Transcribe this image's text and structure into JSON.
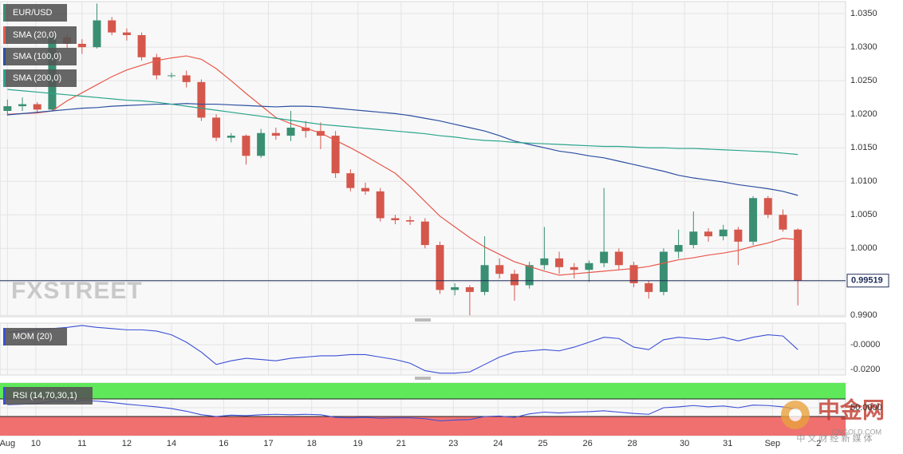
{
  "chart_data": [
    {
      "type": "candlestick",
      "title": "EUR/USD",
      "watermark": "FXSTREET",
      "up_color": "#3a8f73",
      "down_color": "#d5574b",
      "ohlc": [
        [
          1.0205,
          1.0222,
          1.0198,
          1.0212
        ],
        [
          1.0212,
          1.0225,
          1.0205,
          1.0215
        ],
        [
          1.0215,
          1.0218,
          1.0203,
          1.0207
        ],
        [
          1.0207,
          1.0325,
          1.0205,
          1.0315
        ],
        [
          1.0315,
          1.032,
          1.0298,
          1.0305
        ],
        [
          1.0305,
          1.0312,
          1.029,
          1.03
        ],
        [
          1.03,
          1.0365,
          1.0298,
          1.034
        ],
        [
          1.034,
          1.0345,
          1.0318,
          1.0322
        ],
        [
          1.0322,
          1.0328,
          1.031,
          1.0318
        ],
        [
          1.0318,
          1.0322,
          1.028,
          1.0285
        ],
        [
          1.0285,
          1.029,
          1.0252,
          1.0258
        ],
        [
          1.0258,
          1.0262,
          1.0254,
          1.0258
        ],
        [
          1.0258,
          1.0265,
          1.024,
          1.0248
        ],
        [
          1.0248,
          1.0252,
          1.019,
          1.0195
        ],
        [
          1.0195,
          1.02,
          1.016,
          1.0165
        ],
        [
          1.0165,
          1.0172,
          1.0158,
          1.0168
        ],
        [
          1.0168,
          1.017,
          1.0125,
          1.0138
        ],
        [
          1.0138,
          1.0178,
          1.0135,
          1.0172
        ],
        [
          1.0172,
          1.018,
          1.0162,
          1.0168
        ],
        [
          1.0168,
          1.0205,
          1.016,
          1.018
        ],
        [
          1.018,
          1.019,
          1.0165,
          1.0175
        ],
        [
          1.0175,
          1.0188,
          1.0148,
          1.0168
        ],
        [
          1.0168,
          1.0175,
          1.0105,
          1.0112
        ],
        [
          1.0112,
          1.0118,
          1.0085,
          1.009
        ],
        [
          1.009,
          1.0098,
          1.008,
          1.0085
        ],
        [
          1.0085,
          1.009,
          1.004,
          1.0045
        ],
        [
          1.0045,
          1.005,
          1.0036,
          1.0042
        ],
        [
          1.0042,
          1.0048,
          1.0035,
          1.004
        ],
        [
          1.004,
          1.0045,
          1.0,
          1.0005
        ],
        [
          1.0005,
          1.001,
          0.9932,
          0.9938
        ],
        [
          0.9938,
          0.9948,
          0.993,
          0.9942
        ],
        [
          0.9942,
          0.9945,
          0.99,
          0.9935
        ],
        [
          0.9935,
          1.0018,
          0.993,
          0.9975
        ],
        [
          0.9975,
          0.9985,
          0.9955,
          0.9962
        ],
        [
          0.9962,
          0.9968,
          0.9922,
          0.9945
        ],
        [
          0.9945,
          0.998,
          0.994,
          0.9975
        ],
        [
          0.9975,
          1.0032,
          0.9968,
          0.9985
        ],
        [
          0.9985,
          0.9995,
          0.9962,
          0.9972
        ],
        [
          0.9972,
          0.9978,
          0.9955,
          0.9968
        ],
        [
          0.9968,
          0.9982,
          0.995,
          0.9978
        ],
        [
          0.9978,
          1.009,
          0.9972,
          0.9995
        ],
        [
          0.9995,
          1.0,
          0.9968,
          0.9975
        ],
        [
          0.9975,
          0.998,
          0.9942,
          0.9948
        ],
        [
          0.9948,
          0.9952,
          0.9925,
          0.9935
        ],
        [
          0.9935,
          1.0,
          0.993,
          0.9995
        ],
        [
          0.9995,
          1.0028,
          0.9985,
          1.0005
        ],
        [
          1.0005,
          1.0055,
          1.0,
          1.0025
        ],
        [
          1.0025,
          1.003,
          1.001,
          1.0018
        ],
        [
          1.0018,
          1.0035,
          1.0012,
          1.0028
        ],
        [
          1.0028,
          1.0032,
          0.9975,
          1.001
        ],
        [
          1.001,
          1.0078,
          1.0005,
          1.0075
        ],
        [
          1.0075,
          1.0078,
          1.0045,
          1.005
        ],
        [
          1.005,
          1.0058,
          1.0025,
          1.0028
        ],
        [
          1.0028,
          1.003,
          0.9915,
          0.9952
        ]
      ],
      "series": [
        {
          "name": "SMA (20,0)",
          "color": "#e8584a",
          "values": [
            1.02,
            1.0201,
            1.0202,
            1.0205,
            1.022,
            1.0232,
            1.0244,
            1.0256,
            1.0266,
            1.0273,
            1.028,
            1.0284,
            1.0287,
            1.0282,
            1.0268,
            1.025,
            1.0231,
            1.0213,
            1.0195,
            1.0186,
            1.0179,
            1.0172,
            1.0161,
            1.015,
            1.0138,
            1.0125,
            1.0112,
            1.0092,
            1.007,
            1.0048,
            1.0032,
            1.0016,
            1.0002,
            0.9991,
            0.998,
            0.9973,
            0.9966,
            0.996,
            0.9962,
            0.9964,
            0.9966,
            0.9968,
            0.997,
            0.9973,
            0.9978,
            0.9983,
            0.9986,
            0.999,
            0.9993,
            0.9997,
            1.0003,
            1.0008,
            1.0015,
            1.0013
          ]
        },
        {
          "name": "SMA (100,0)",
          "color": "#2c4fa0",
          "values": [
            1.0199,
            1.0201,
            1.0203,
            1.0205,
            1.0207,
            1.0209,
            1.021,
            1.0212,
            1.0213,
            1.0214,
            1.0215,
            1.0215,
            1.0216,
            1.0215,
            1.0215,
            1.0214,
            1.0213,
            1.0212,
            1.0211,
            1.0212,
            1.0212,
            1.0211,
            1.0209,
            1.0207,
            1.0205,
            1.0203,
            1.0201,
            1.0198,
            1.0194,
            1.019,
            1.0185,
            1.018,
            1.0175,
            1.0168,
            1.016,
            1.0155,
            1.015,
            1.0145,
            1.0142,
            1.0138,
            1.0135,
            1.013,
            1.0125,
            1.012,
            1.0115,
            1.0109,
            1.0105,
            1.0102,
            1.0099,
            1.0095,
            1.0092,
            1.0089,
            1.0085,
            1.0079
          ]
        },
        {
          "name": "SMA (200,0)",
          "color": "#2aa58a",
          "values": [
            1.0237,
            1.0235,
            1.0233,
            1.0231,
            1.0229,
            1.0227,
            1.0225,
            1.0223,
            1.0221,
            1.022,
            1.0218,
            1.0215,
            1.0212,
            1.0209,
            1.0206,
            1.0203,
            1.02,
            1.0197,
            1.0194,
            1.0191,
            1.0188,
            1.0185,
            1.0183,
            1.0181,
            1.0179,
            1.0177,
            1.0175,
            1.0173,
            1.0171,
            1.0168,
            1.0166,
            1.0163,
            1.0161,
            1.016,
            1.0158,
            1.0157,
            1.0156,
            1.0155,
            1.0154,
            1.0153,
            1.0152,
            1.0152,
            1.0151,
            1.015,
            1.015,
            1.0149,
            1.0149,
            1.0148,
            1.0147,
            1.0146,
            1.0145,
            1.0144,
            1.0142,
            1.014
          ]
        }
      ],
      "last_price": 0.99519,
      "last_price_color": "#1f2d5a",
      "ylim": [
        0.9898,
        1.0368
      ],
      "yticks": [
        {
          "value": 0.99,
          "label": "0.9900"
        },
        {
          "value": 0.995,
          "label": "0.9950"
        },
        {
          "value": 1,
          "label": "1.0000"
        },
        {
          "value": 1.005,
          "label": "1.0050"
        },
        {
          "value": 1.01,
          "label": "1.0100"
        },
        {
          "value": 1.015,
          "label": "1.0150"
        },
        {
          "value": 1.02,
          "label": "1.0200"
        },
        {
          "value": 1.025,
          "label": "1.0250"
        },
        {
          "value": 1.03,
          "label": "1.0300"
        },
        {
          "value": 1.035,
          "label": "1.0350"
        }
      ],
      "xlim": [
        -0.5,
        56.2
      ],
      "xticks": [
        {
          "value": 0,
          "label": "Aug"
        },
        {
          "value": 1.9,
          "label": "10"
        },
        {
          "value": 5,
          "label": "11"
        },
        {
          "value": 8,
          "label": "12"
        },
        {
          "value": 11,
          "label": "14"
        },
        {
          "value": 14.5,
          "label": "16"
        },
        {
          "value": 17.5,
          "label": "17"
        },
        {
          "value": 20.4,
          "label": "18"
        },
        {
          "value": 23.5,
          "label": "19"
        },
        {
          "value": 26.4,
          "label": "21"
        },
        {
          "value": 29.9,
          "label": "23"
        },
        {
          "value": 32.9,
          "label": "24"
        },
        {
          "value": 35.9,
          "label": "25"
        },
        {
          "value": 38.9,
          "label": "26"
        },
        {
          "value": 41.9,
          "label": "28"
        },
        {
          "value": 45.4,
          "label": "30"
        },
        {
          "value": 48.3,
          "label": "31"
        },
        {
          "value": 51.3,
          "label": "Sep"
        },
        {
          "value": 54.4,
          "label": "2"
        }
      ],
      "grid": true
    },
    {
      "type": "line",
      "title": "MOM (20)",
      "color": "#3b4fd4",
      "values": [
        0.01,
        0.011,
        0.012,
        0.013,
        0.014,
        0.0155,
        0.014,
        0.013,
        0.012,
        0.012,
        0.011,
        0.008,
        0.002,
        -0.006,
        -0.016,
        -0.013,
        -0.011,
        -0.012,
        -0.013,
        -0.011,
        -0.01,
        -0.009,
        -0.009,
        -0.008,
        -0.008,
        -0.01,
        -0.012,
        -0.015,
        -0.021,
        -0.023,
        -0.023,
        -0.022,
        -0.016,
        -0.01,
        -0.006,
        -0.005,
        -0.004,
        -0.005,
        -0.002,
        0.002,
        0.006,
        0.005,
        -0.002,
        -0.004,
        0.004,
        0.006,
        0.005,
        0.004,
        0.006,
        0.003,
        0.006,
        0.008,
        0.007,
        -0.004
      ],
      "ylim": [
        -0.0245,
        0.0174
      ],
      "yticks": [
        {
          "value": 0,
          "label": "-0.0000"
        },
        {
          "value": -0.02,
          "label": "-0.0200"
        }
      ],
      "grid": true
    },
    {
      "type": "line",
      "title": "RSI (14,70,30,1)",
      "color": "#3b4fd4",
      "values": [
        57,
        58,
        60,
        65,
        64,
        66,
        65,
        62,
        58,
        55,
        52,
        48,
        42,
        34,
        30,
        33,
        32,
        34,
        35,
        34,
        35,
        34,
        28,
        27,
        28,
        26,
        27,
        27,
        25,
        20,
        22,
        23,
        30,
        31,
        28,
        36,
        40,
        38,
        40,
        41,
        43,
        40,
        37,
        35,
        50,
        52,
        55,
        52,
        54,
        50,
        56,
        55,
        52,
        46
      ],
      "overbought": 70,
      "oversold": 30,
      "overbought_color": "#5ee85a",
      "oversold_color": "#f07070",
      "ylim": [
        0,
        100
      ],
      "yticks": [
        {
          "value": 50,
          "label": "50.0000"
        }
      ],
      "grid": true
    }
  ],
  "watermark": {
    "name": "中金网",
    "domain": "CNGOLD.COM",
    "tagline": "中 文 财 经 新 媒 体"
  }
}
